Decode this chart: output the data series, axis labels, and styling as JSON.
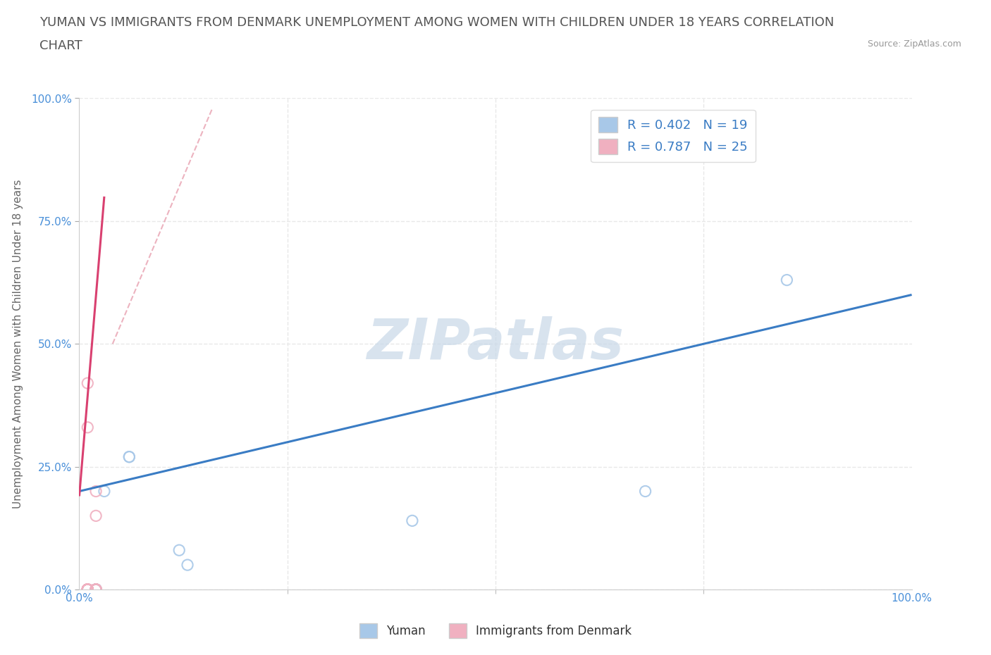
{
  "title_line1": "YUMAN VS IMMIGRANTS FROM DENMARK UNEMPLOYMENT AMONG WOMEN WITH CHILDREN UNDER 18 YEARS CORRELATION",
  "title_line2": "CHART",
  "source": "Source: ZipAtlas.com",
  "ylabel": "Unemployment Among Women with Children Under 18 years",
  "xlim": [
    0,
    1.0
  ],
  "ylim": [
    0,
    1.0
  ],
  "legend_r1": "R = 0.402   N = 19",
  "legend_r2": "R = 0.787   N = 25",
  "yuman_color": "#a8c8e8",
  "denmark_color": "#f0b0c0",
  "trendline_yuman_color": "#3a7cc4",
  "trendline_denmark_color": "#d94070",
  "dashed_color": "#e8a0b0",
  "watermark": "ZIPatlas",
  "watermark_color": "#c8d8e8",
  "yuman_x": [
    0.02,
    0.02,
    0.02,
    0.02,
    0.02,
    0.02,
    0.02,
    0.02,
    0.02,
    0.02,
    0.02,
    0.03,
    0.06,
    0.06,
    0.12,
    0.13,
    0.4,
    0.68,
    0.85
  ],
  "yuman_y": [
    0.0,
    0.0,
    0.0,
    0.0,
    0.0,
    0.0,
    0.0,
    0.0,
    0.0,
    0.0,
    0.0,
    0.2,
    0.27,
    0.27,
    0.08,
    0.05,
    0.14,
    0.2,
    0.63
  ],
  "denmark_x": [
    0.01,
    0.01,
    0.01,
    0.01,
    0.01,
    0.01,
    0.01,
    0.01,
    0.01,
    0.01,
    0.01,
    0.01,
    0.01,
    0.01,
    0.01,
    0.01,
    0.01,
    0.02,
    0.02,
    0.02,
    0.02,
    0.02,
    0.02,
    0.02,
    0.02
  ],
  "denmark_y": [
    0.0,
    0.0,
    0.0,
    0.0,
    0.0,
    0.0,
    0.0,
    0.0,
    0.0,
    0.0,
    0.0,
    0.0,
    0.0,
    0.0,
    0.0,
    0.42,
    0.33,
    0.2,
    0.15,
    0.0,
    0.0,
    0.0,
    0.0,
    0.0,
    0.0
  ],
  "blue_trendline": [
    [
      0.0,
      0.2
    ],
    [
      1.0,
      0.6
    ]
  ],
  "pink_trendline": [
    [
      0.0,
      0.19
    ],
    [
      0.03,
      0.8
    ]
  ],
  "dashed_line": [
    [
      0.04,
      0.5
    ],
    [
      0.16,
      0.98
    ]
  ],
  "grid_color": "#e8e8e8",
  "grid_style": "--",
  "background_color": "#ffffff",
  "title_color": "#555555",
  "axis_label_color": "#666666",
  "tick_label_color": "#4a90d9",
  "title_fontsize": 13,
  "axis_label_fontsize": 11,
  "tick_fontsize": 11
}
